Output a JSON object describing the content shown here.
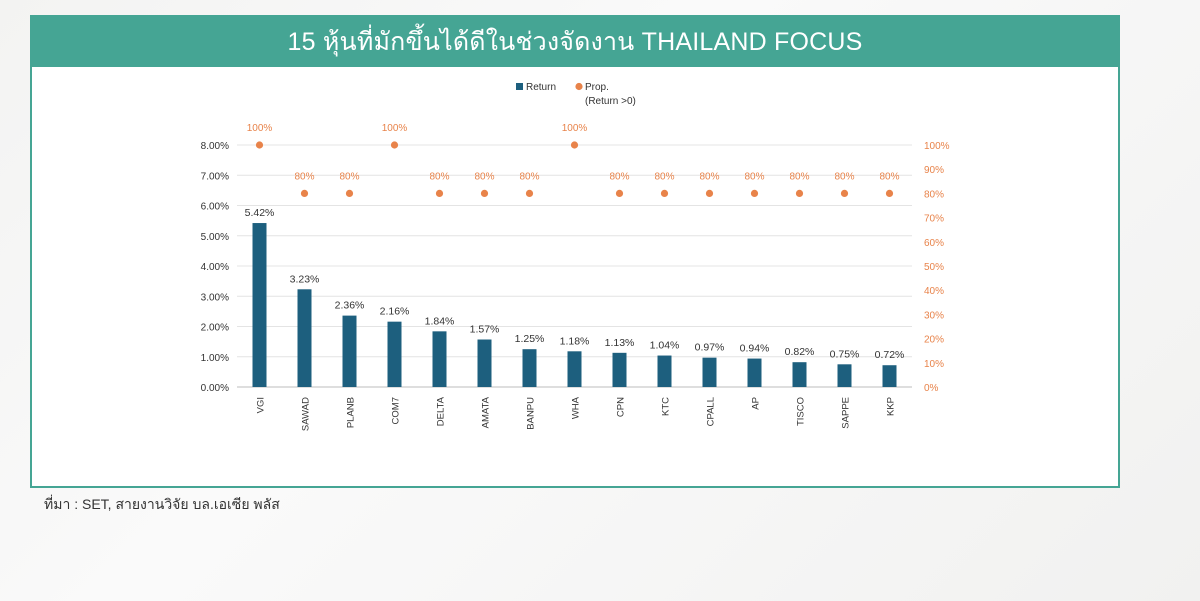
{
  "title": "15 หุ้นที่มักขึ้นได้ดีในช่วงจัดงาน THAILAND FOCUS",
  "source": "ที่มา : SET, สายงานวิจัย บล.เอเซีย พลัส",
  "colors": {
    "bar": "#1d5f7e",
    "dot": "#e8834a",
    "banner": "#45a594",
    "leftAxis": "#333333",
    "rightAxis": "#e8834a"
  },
  "chart_data": {
    "type": "bar",
    "title": "",
    "categories": [
      "VGI",
      "SAWAD",
      "PLANB",
      "COM7",
      "DELTA",
      "AMATA",
      "BANPU",
      "WHA",
      "CPN",
      "KTC",
      "CPALL",
      "AP",
      "TISCO",
      "SAPPE",
      "KKP"
    ],
    "series": [
      {
        "name": "Return",
        "type": "bar",
        "axis": "left",
        "values": [
          5.42,
          3.23,
          2.36,
          2.16,
          1.84,
          1.57,
          1.25,
          1.18,
          1.13,
          1.04,
          0.97,
          0.94,
          0.82,
          0.75,
          0.72
        ],
        "labels": [
          "5.42%",
          "3.23%",
          "2.36%",
          "2.16%",
          "1.84%",
          "1.57%",
          "1.25%",
          "1.18%",
          "1.13%",
          "1.04%",
          "0.97%",
          "0.94%",
          "0.82%",
          "0.75%",
          "0.72%"
        ]
      },
      {
        "name": "Prop.",
        "name_line2": "(Return >0)",
        "type": "scatter",
        "axis": "right",
        "values": [
          100,
          80,
          80,
          100,
          80,
          80,
          80,
          100,
          80,
          80,
          80,
          80,
          80,
          80,
          80
        ],
        "labels": [
          "100%",
          "80%",
          "80%",
          "100%",
          "80%",
          "80%",
          "80%",
          "100%",
          "80%",
          "80%",
          "80%",
          "80%",
          "80%",
          "80%",
          "80%"
        ]
      }
    ],
    "y_left": {
      "min": 0,
      "max": 8,
      "ticks": [
        "0.00%",
        "1.00%",
        "2.00%",
        "3.00%",
        "4.00%",
        "5.00%",
        "6.00%",
        "7.00%",
        "8.00%"
      ]
    },
    "y_right": {
      "min": 0,
      "max": 100,
      "ticks": [
        "0%",
        "10%",
        "20%",
        "30%",
        "40%",
        "50%",
        "60%",
        "70%",
        "80%",
        "90%",
        "100%"
      ]
    },
    "grid": true,
    "legend": "top-center"
  }
}
